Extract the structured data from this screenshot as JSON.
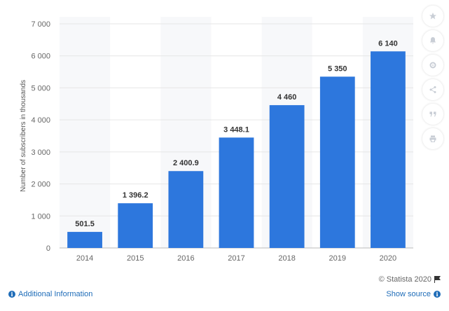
{
  "chart_data": {
    "type": "bar",
    "title": "",
    "xlabel": "",
    "ylabel": "Number of subscribers in thousands",
    "categories": [
      "2014",
      "2015",
      "2016",
      "2017",
      "2018",
      "2019",
      "2020"
    ],
    "values": [
      501.5,
      1396.2,
      2400.9,
      3448.1,
      4460,
      5350,
      6140
    ],
    "value_labels": [
      "501.5",
      "1 396.2",
      "2 400.9",
      "3 448.1",
      "4 460",
      "5 350",
      "6 140"
    ],
    "ylim": [
      0,
      7000
    ],
    "yticks": [
      0,
      1000,
      2000,
      3000,
      4000,
      5000,
      6000,
      7000
    ],
    "ytick_labels": [
      "0",
      "1 000",
      "2 000",
      "3 000",
      "4 000",
      "5 000",
      "6 000",
      "7 000"
    ],
    "grid": true,
    "bar_color": "#2d77dd"
  },
  "toolbar": {
    "icons": [
      "star-icon",
      "bell-icon",
      "gear-icon",
      "share-icon",
      "quote-icon",
      "print-icon"
    ]
  },
  "credit": {
    "text": "© Statista 2020"
  },
  "footer": {
    "additional_info": "Additional Information",
    "show_source": "Show source"
  }
}
